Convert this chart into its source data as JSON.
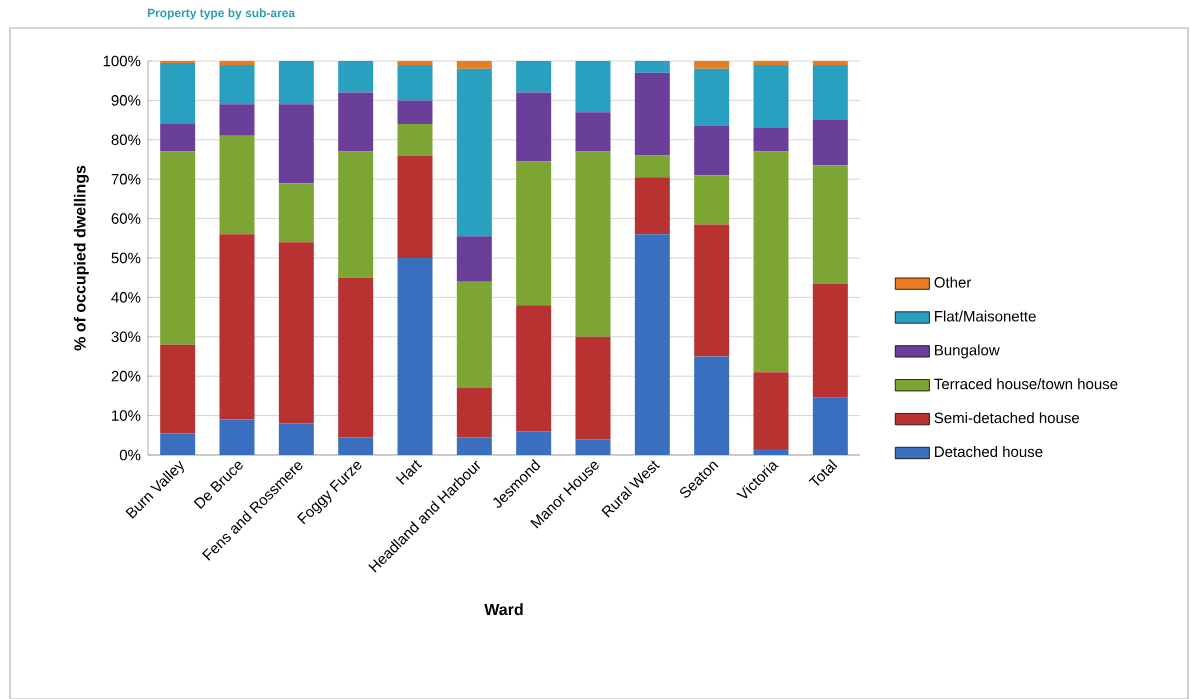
{
  "chart_data": {
    "type": "bar",
    "stacked": true,
    "title": "Property type by sub-area",
    "xlabel": "Ward",
    "ylabel": "% of occupied dwellings",
    "categories": [
      "Burn Valley",
      "De Bruce",
      "Fens and Rossmere",
      "Foggy Furze",
      "Hart",
      "Headland and Harbour",
      "Jesmond",
      "Manor House",
      "Rural West",
      "Seaton",
      "Victoria",
      "Total"
    ],
    "series": [
      {
        "name": "Detached house",
        "color": "#3a6fbf",
        "values": [
          5.5,
          9,
          8,
          4.5,
          50,
          4.5,
          6,
          4,
          56,
          25,
          1.5,
          14.5
        ]
      },
      {
        "name": "Semi-detached house",
        "color": "#b83232",
        "values": [
          22.5,
          47,
          46,
          40.5,
          26,
          12.5,
          32,
          26,
          14.5,
          33.5,
          19.5,
          29
        ]
      },
      {
        "name": "Terraced house/town house",
        "color": "#7da533",
        "values": [
          49,
          25,
          15,
          32,
          8,
          27,
          36.5,
          47,
          5.5,
          12.5,
          56,
          30
        ]
      },
      {
        "name": "Bungalow",
        "color": "#6a3f9a",
        "values": [
          7,
          8,
          20,
          15,
          6,
          11.5,
          17.5,
          10,
          21,
          12.5,
          6,
          11.5
        ]
      },
      {
        "name": "Flat/Maisonette",
        "color": "#2aa0c0",
        "values": [
          15.5,
          10,
          11,
          8,
          9,
          42.5,
          8,
          13,
          3,
          14.5,
          16,
          14
        ]
      },
      {
        "name": "Other",
        "color": "#e87d20",
        "values": [
          0.5,
          1,
          0,
          0,
          1,
          2,
          0,
          0,
          0,
          2,
          1,
          1
        ]
      }
    ],
    "ylim": [
      0,
      100
    ],
    "yticks": [
      {
        "value": 0,
        "label": "0%"
      },
      {
        "value": 10,
        "label": "10%"
      },
      {
        "value": 20,
        "label": "20%"
      },
      {
        "value": 30,
        "label": "30%"
      },
      {
        "value": 40,
        "label": "40%"
      },
      {
        "value": 50,
        "label": "50%"
      },
      {
        "value": 60,
        "label": "60%"
      },
      {
        "value": 70,
        "label": "70%"
      },
      {
        "value": 80,
        "label": "80%"
      },
      {
        "value": 90,
        "label": "90%"
      },
      {
        "value": 100,
        "label": "100%"
      }
    ],
    "grid": "y",
    "legend": "right"
  }
}
